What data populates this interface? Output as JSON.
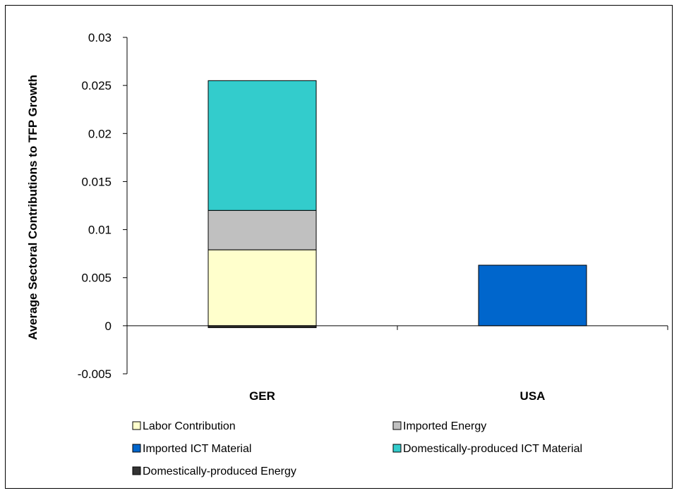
{
  "chart_data": {
    "type": "bar",
    "stacked": true,
    "ylabel": "Average Sectoral Contributions to TFP Growth",
    "categories": [
      "GER",
      "USA"
    ],
    "ylim": [
      -0.005,
      0.03
    ],
    "yticks": [
      -0.005,
      0,
      0.005,
      0.01,
      0.015,
      0.02,
      0.025,
      0.03
    ],
    "ytick_labels": [
      "-0.005",
      "0",
      "0.005",
      "0.01",
      "0.015",
      "0.02",
      "0.025",
      "0.03"
    ],
    "grid": false,
    "legend_position": "bottom",
    "series": [
      {
        "name": "Labor Contribution",
        "color": "#FFFFCC",
        "values": [
          0.0079,
          0
        ]
      },
      {
        "name": "Imported Energy",
        "color": "#C0C0C0",
        "values": [
          0.0041,
          0
        ]
      },
      {
        "name": "Imported ICT Material",
        "color": "#0066CC",
        "values": [
          0,
          0.0063
        ]
      },
      {
        "name": "Domestically-produced ICT Material",
        "color": "#33CCCC",
        "values": [
          0.0135,
          0
        ]
      },
      {
        "name": "Domestically-produced Energy",
        "color": "#333333",
        "values": [
          -0.0002,
          0
        ]
      }
    ]
  }
}
